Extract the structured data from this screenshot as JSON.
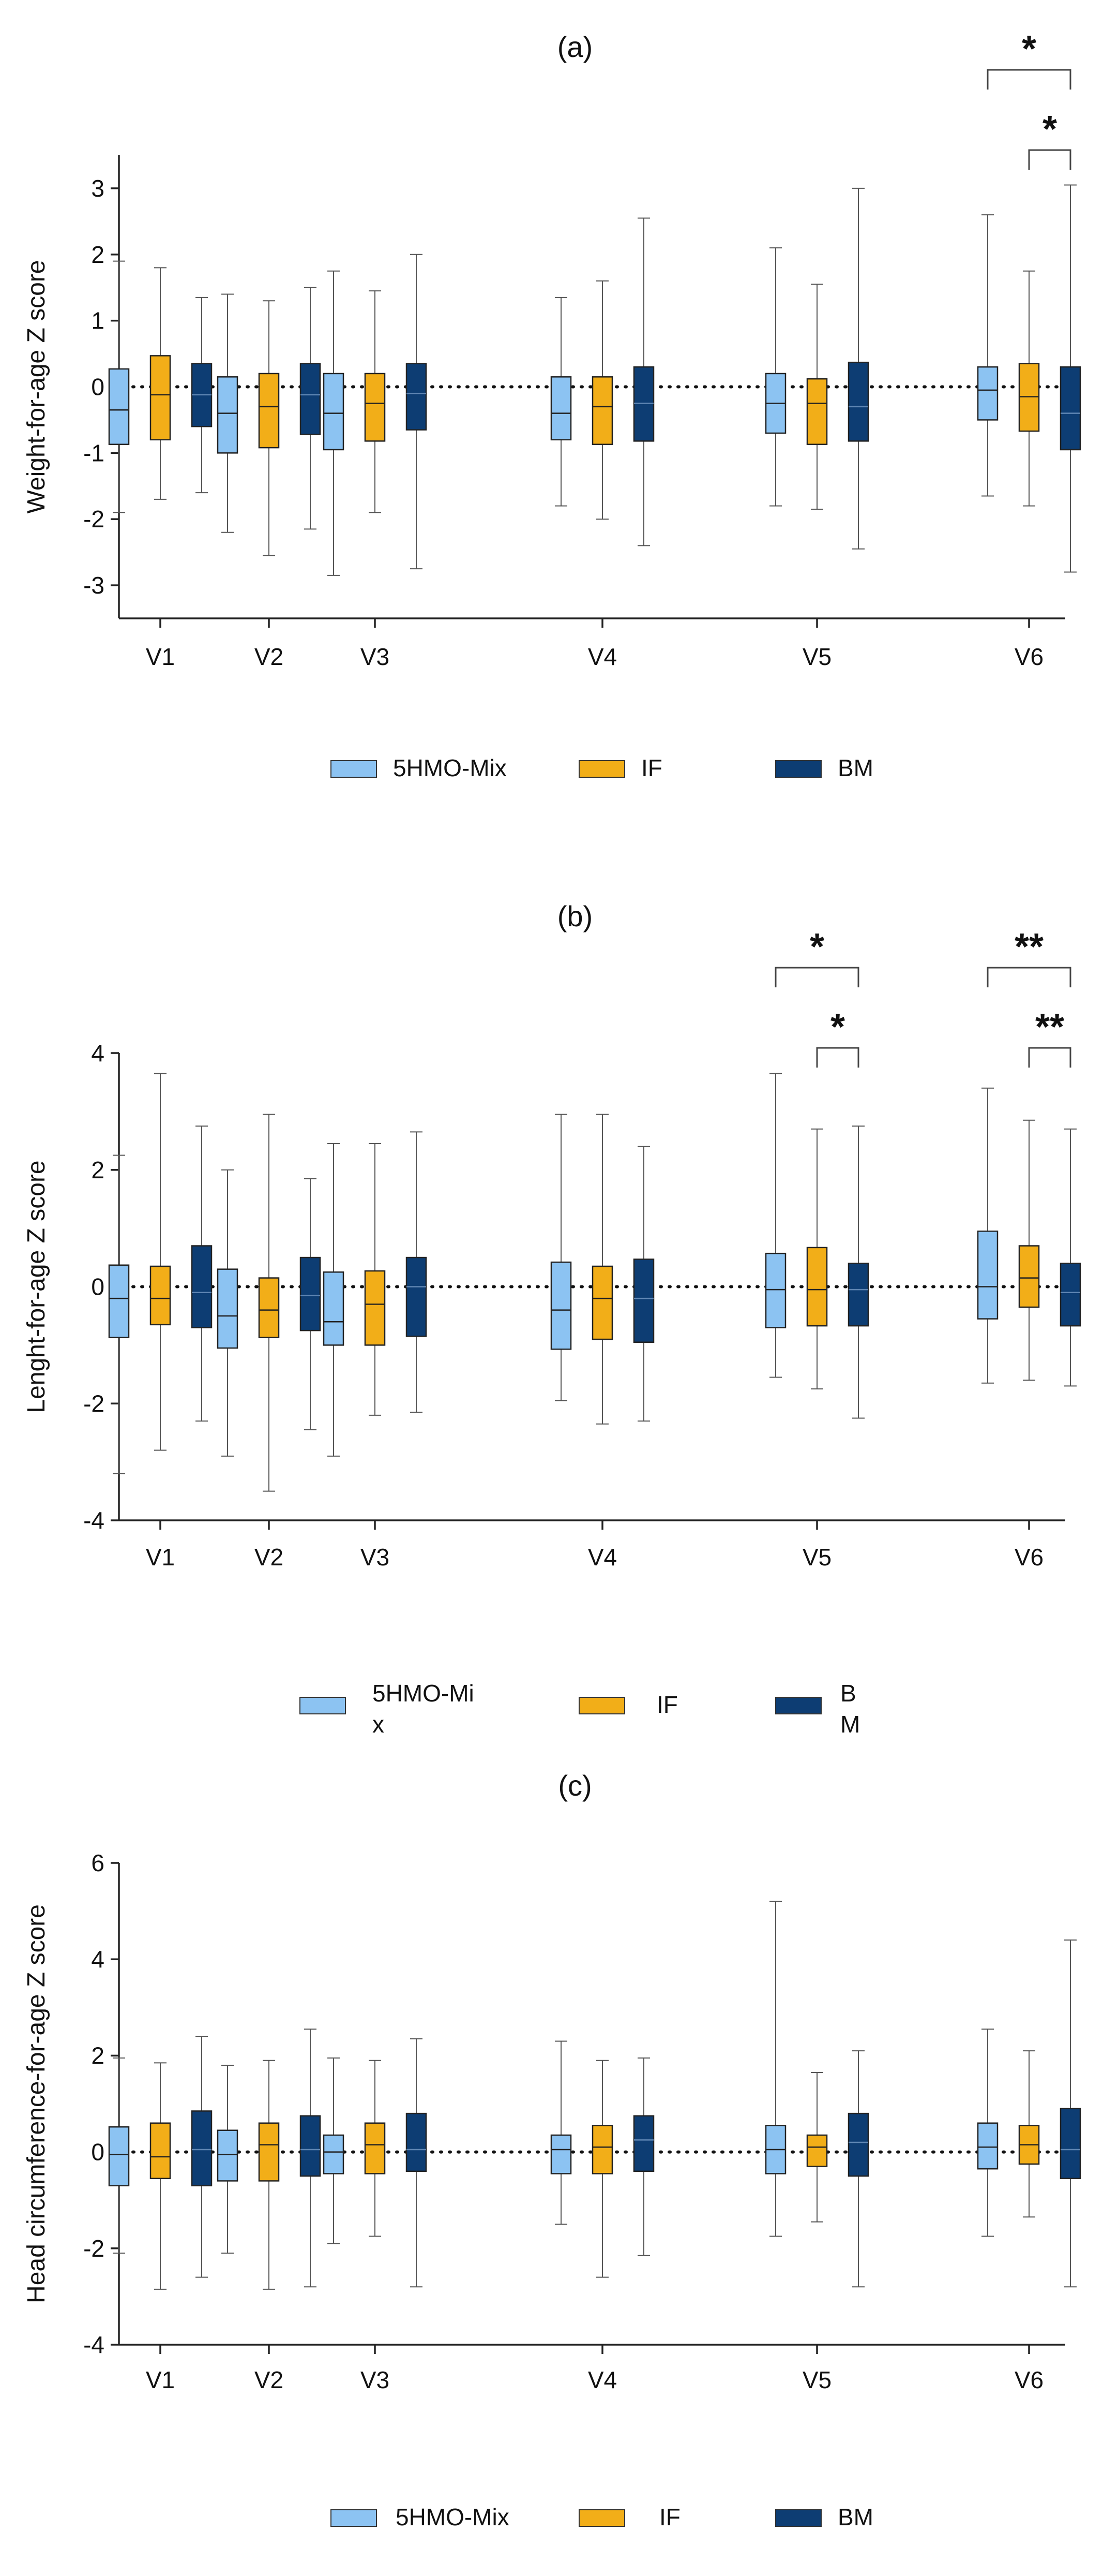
{
  "colors": {
    "mix": "#8cc3f2",
    "if": "#f2ae18",
    "bm": "#0d3d73"
  },
  "chart_data": [
    {
      "id": "a",
      "type": "box",
      "title": "(a)",
      "ylabel": "Weight-for-age Z score",
      "ylim": [
        -3.5,
        3.5
      ],
      "yticks": [
        -3,
        -2,
        -1,
        0,
        1,
        2,
        3
      ],
      "yticklabels": [
        "-3",
        "-2",
        "-1",
        "0",
        "1",
        "2",
        "3"
      ],
      "categories": [
        "V1",
        "V2",
        "V3",
        "V4",
        "V5",
        "V6"
      ],
      "series": [
        {
          "name": "5HMO-Mix",
          "stats": [
            [
              -1.9,
              -0.87,
              -0.35,
              0.27,
              1.9
            ],
            [
              -2.2,
              -1.0,
              -0.4,
              0.15,
              1.4
            ],
            [
              -2.85,
              -0.95,
              -0.4,
              0.2,
              1.75
            ],
            [
              -1.8,
              -0.8,
              -0.4,
              0.15,
              1.35
            ],
            [
              -1.8,
              -0.7,
              -0.25,
              0.2,
              2.1
            ],
            [
              -1.65,
              -0.5,
              -0.05,
              0.3,
              2.6
            ]
          ]
        },
        {
          "name": "IF",
          "stats": [
            [
              -1.7,
              -0.8,
              -0.12,
              0.47,
              1.8
            ],
            [
              -2.55,
              -0.92,
              -0.3,
              0.2,
              1.3
            ],
            [
              -1.9,
              -0.82,
              -0.25,
              0.2,
              1.45
            ],
            [
              -2.0,
              -0.87,
              -0.3,
              0.15,
              1.6
            ],
            [
              -1.85,
              -0.87,
              -0.25,
              0.12,
              1.55
            ],
            [
              -1.8,
              -0.67,
              -0.15,
              0.35,
              1.75
            ]
          ]
        },
        {
          "name": "BM",
          "stats": [
            [
              -1.6,
              -0.6,
              -0.12,
              0.35,
              1.35
            ],
            [
              -2.15,
              -0.72,
              -0.12,
              0.35,
              1.5
            ],
            [
              -2.75,
              -0.65,
              -0.1,
              0.35,
              2.0
            ],
            [
              -2.4,
              -0.82,
              -0.25,
              0.3,
              2.55
            ],
            [
              -2.45,
              -0.82,
              -0.3,
              0.37,
              3.0
            ],
            [
              -2.8,
              -0.95,
              -0.4,
              0.3,
              3.05
            ]
          ]
        }
      ],
      "significance": [
        {
          "category": "V6",
          "from": "5HMO-Mix",
          "to": "BM",
          "label": "*"
        },
        {
          "category": "V6",
          "from": "IF",
          "to": "BM",
          "label": "*"
        }
      ],
      "legend": [
        {
          "key": "mix",
          "label": "5HMO-Mix"
        },
        {
          "key": "if",
          "label": "IF"
        },
        {
          "key": "bm",
          "label": "BM"
        }
      ]
    },
    {
      "id": "b",
      "type": "box",
      "title": "(b)",
      "ylabel": "Lenght-for-age Z score",
      "ylim": [
        -4,
        4
      ],
      "yticks": [
        -4,
        -2,
        0,
        2,
        4
      ],
      "yticklabels": [
        "-4",
        "-2",
        "0",
        "2",
        "4"
      ],
      "categories": [
        "V1",
        "V2",
        "V3",
        "V4",
        "V5",
        "V6"
      ],
      "series": [
        {
          "name": "5HMO-Mix",
          "stats": [
            [
              -3.2,
              -0.87,
              -0.2,
              0.37,
              2.25
            ],
            [
              -2.9,
              -1.05,
              -0.5,
              0.3,
              2.0
            ],
            [
              -2.9,
              -1.0,
              -0.6,
              0.25,
              2.45
            ],
            [
              -1.95,
              -1.07,
              -0.4,
              0.42,
              2.95
            ],
            [
              -1.55,
              -0.7,
              -0.05,
              0.57,
              3.65
            ],
            [
              -1.65,
              -0.55,
              0.0,
              0.95,
              3.4
            ]
          ]
        },
        {
          "name": "IF",
          "stats": [
            [
              -2.8,
              -0.65,
              -0.2,
              0.35,
              3.65
            ],
            [
              -3.5,
              -0.87,
              -0.4,
              0.15,
              2.95
            ],
            [
              -2.2,
              -1.0,
              -0.3,
              0.27,
              2.45
            ],
            [
              -2.35,
              -0.9,
              -0.2,
              0.35,
              2.95
            ],
            [
              -1.75,
              -0.67,
              -0.05,
              0.67,
              2.7
            ],
            [
              -1.6,
              -0.35,
              0.15,
              0.7,
              2.85
            ]
          ]
        },
        {
          "name": "BM",
          "stats": [
            [
              -2.3,
              -0.7,
              -0.1,
              0.7,
              2.75
            ],
            [
              -2.45,
              -0.75,
              -0.15,
              0.5,
              1.85
            ],
            [
              -2.15,
              -0.85,
              0.0,
              0.5,
              2.65
            ],
            [
              -2.3,
              -0.95,
              -0.2,
              0.47,
              2.4
            ],
            [
              -2.25,
              -0.67,
              -0.05,
              0.4,
              2.75
            ],
            [
              -1.7,
              -0.67,
              -0.1,
              0.4,
              2.7
            ]
          ]
        }
      ],
      "significance": [
        {
          "category": "V5",
          "from": "5HMO-Mix",
          "to": "BM",
          "label": "*"
        },
        {
          "category": "V5",
          "from": "IF",
          "to": "BM",
          "label": "*"
        },
        {
          "category": "V6",
          "from": "5HMO-Mix",
          "to": "BM",
          "label": "**"
        },
        {
          "category": "V6",
          "from": "IF",
          "to": "BM",
          "label": "**"
        }
      ],
      "legend": [
        {
          "key": "mix",
          "label": "5HMO-Mi x"
        },
        {
          "key": "if",
          "label": "IF"
        },
        {
          "key": "bm",
          "label": "B M"
        }
      ]
    },
    {
      "id": "c",
      "type": "box",
      "title": "(c)",
      "ylabel": "Head circumference-for-age Z score",
      "ylim": [
        -4,
        6
      ],
      "yticks": [
        -4,
        -2,
        0,
        2,
        4,
        6
      ],
      "yticklabels": [
        "-4",
        "-2",
        "0",
        "2",
        "4",
        "6"
      ],
      "categories": [
        "V1",
        "V2",
        "V3",
        "V4",
        "V5",
        "V6"
      ],
      "series": [
        {
          "name": "5HMO-Mix",
          "stats": [
            [
              -2.1,
              -0.7,
              -0.05,
              0.52,
              1.95
            ],
            [
              -2.1,
              -0.6,
              -0.05,
              0.45,
              1.8
            ],
            [
              -1.9,
              -0.45,
              0.0,
              0.35,
              1.95
            ],
            [
              -1.5,
              -0.45,
              0.05,
              0.35,
              2.3
            ],
            [
              -1.75,
              -0.45,
              0.05,
              0.55,
              5.2
            ],
            [
              -1.75,
              -0.35,
              0.1,
              0.6,
              2.55
            ]
          ]
        },
        {
          "name": "IF",
          "stats": [
            [
              -2.85,
              -0.55,
              -0.1,
              0.6,
              1.85
            ],
            [
              -2.85,
              -0.6,
              0.15,
              0.6,
              1.9
            ],
            [
              -1.75,
              -0.45,
              0.15,
              0.6,
              1.9
            ],
            [
              -2.6,
              -0.45,
              0.1,
              0.55,
              1.9
            ],
            [
              -1.45,
              -0.3,
              0.1,
              0.35,
              1.65
            ],
            [
              -1.35,
              -0.25,
              0.15,
              0.55,
              2.1
            ]
          ]
        },
        {
          "name": "BM",
          "stats": [
            [
              -2.6,
              -0.7,
              0.05,
              0.85,
              2.4
            ],
            [
              -2.8,
              -0.5,
              0.05,
              0.75,
              2.55
            ],
            [
              -2.8,
              -0.4,
              0.05,
              0.8,
              2.35
            ],
            [
              -2.15,
              -0.4,
              0.25,
              0.75,
              1.95
            ],
            [
              -2.8,
              -0.5,
              0.2,
              0.8,
              2.1
            ],
            [
              -2.8,
              -0.55,
              0.05,
              0.9,
              4.4
            ]
          ]
        }
      ],
      "significance": [],
      "legend": [
        {
          "key": "mix",
          "label": "5HMO-Mix"
        },
        {
          "key": "if",
          "label": "IF"
        },
        {
          "key": "bm",
          "label": "BM"
        }
      ]
    }
  ]
}
